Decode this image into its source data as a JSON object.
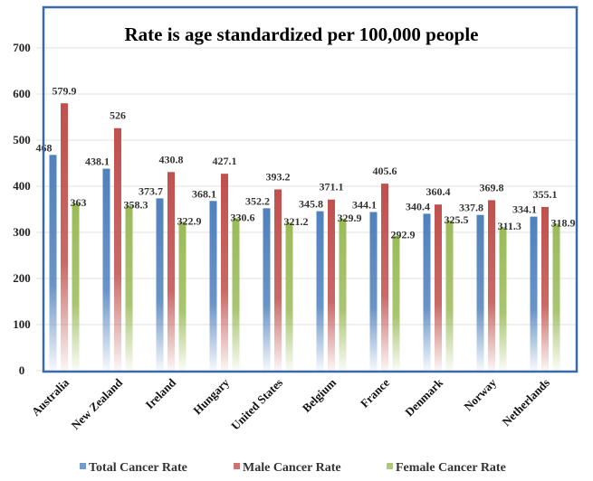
{
  "chart_data": {
    "type": "bar",
    "title": "Rate is age standardized per 100,000 people",
    "xlabel": "",
    "ylabel": "",
    "ylim": [
      0,
      700
    ],
    "yticks": [
      0,
      100,
      200,
      300,
      400,
      500,
      600,
      700
    ],
    "grid": true,
    "legend_position": "bottom",
    "categories": [
      "Australia",
      "New Zealand",
      "Ireland",
      "Hungary",
      "United States",
      "Belgium",
      "France",
      "Denmark",
      "Norway",
      "Netherlands"
    ],
    "series": [
      {
        "name": "Total Cancer Rate",
        "color": "#4f81bd",
        "values": [
          468,
          438.1,
          373.7,
          368.1,
          352.2,
          345.8,
          344.1,
          340.4,
          337.8,
          334.1
        ],
        "labels": [
          "468",
          "438.1",
          "373.7",
          "368.1",
          "352.2",
          "345.8",
          "344.1",
          "340.4",
          "337.8",
          "334.1"
        ]
      },
      {
        "name": "Male Cancer Rate",
        "color": "#c0504d",
        "values": [
          579.9,
          526,
          430.8,
          427.1,
          393.2,
          371.1,
          405.6,
          360.4,
          369.8,
          355.1
        ],
        "labels": [
          "579.9",
          "526",
          "430.8",
          "427.1",
          "393.2",
          "371.1",
          "405.6",
          "360.4",
          "369.8",
          "355.1"
        ]
      },
      {
        "name": "Female Cancer Rate",
        "color": "#9bbb59",
        "values": [
          363,
          358.3,
          322.9,
          330.6,
          321.2,
          329.9,
          292.9,
          325.5,
          311.3,
          318.9
        ],
        "labels": [
          "363",
          "358.3",
          "322.9",
          "330.6",
          "321.2",
          "329.9",
          "292.9",
          "325.5",
          "311.3",
          "318.9"
        ]
      }
    ]
  }
}
